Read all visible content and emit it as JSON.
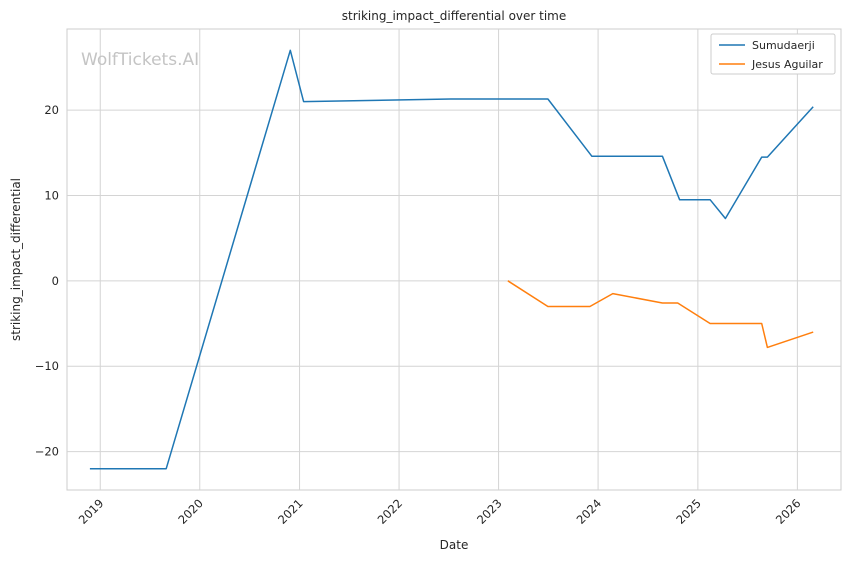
{
  "watermark": "WolfTickets.AI",
  "chart_data": {
    "type": "line",
    "title": "striking_impact_differential over time",
    "xlabel": "Date",
    "ylabel": "striking_impact_differential",
    "x_ticks": [
      "2019",
      "2020",
      "2021",
      "2022",
      "2023",
      "2024",
      "2025",
      "2026"
    ],
    "y_ticks": [
      -20,
      -10,
      0,
      10,
      20
    ],
    "xlim": [
      "2018-09-01",
      "2026-06-10"
    ],
    "ylim": [
      -24.5,
      29.5
    ],
    "grid": true,
    "legend_position": "top-right",
    "series": [
      {
        "name": "Sumudaerji",
        "color": "#1f77b4",
        "points": [
          [
            "2018-11-24",
            -22
          ],
          [
            "2019-08-31",
            -22
          ],
          [
            "2020-11-28",
            27
          ],
          [
            "2021-01-16",
            21
          ],
          [
            "2022-07-09",
            21.3
          ],
          [
            "2023-07-01",
            21.3
          ],
          [
            "2023-12-09",
            14.6
          ],
          [
            "2024-08-24",
            14.6
          ],
          [
            "2024-10-26",
            9.5
          ],
          [
            "2025-02-15",
            9.5
          ],
          [
            "2025-04-12",
            7.3
          ],
          [
            "2025-08-23",
            14.5
          ],
          [
            "2025-09-13",
            14.5
          ],
          [
            "2026-02-28",
            20.4
          ]
        ]
      },
      {
        "name": "Jesus Aguilar",
        "color": "#ff7f0e",
        "points": [
          [
            "2023-02-04",
            0
          ],
          [
            "2023-07-01",
            -3
          ],
          [
            "2023-12-02",
            -3
          ],
          [
            "2024-02-24",
            -1.5
          ],
          [
            "2024-08-24",
            -2.6
          ],
          [
            "2024-10-19",
            -2.6
          ],
          [
            "2025-02-15",
            -5
          ],
          [
            "2025-08-23",
            -5
          ],
          [
            "2025-09-13",
            -7.8
          ],
          [
            "2026-02-28",
            -6
          ]
        ]
      }
    ]
  }
}
